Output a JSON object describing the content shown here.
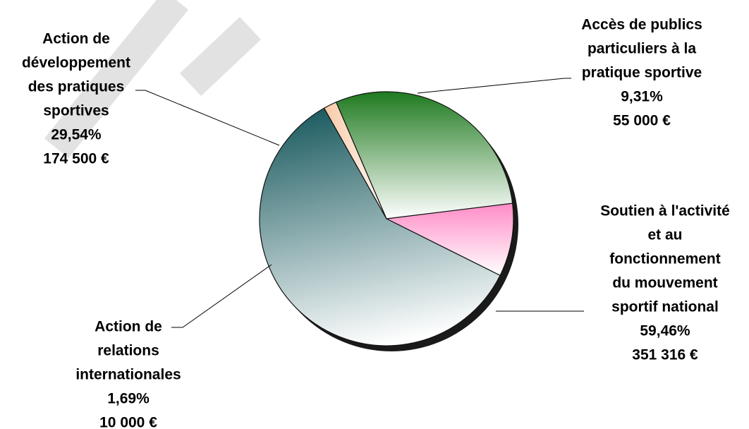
{
  "chart_data": {
    "type": "pie",
    "slices": [
      {
        "lines": [
          "Accès de publics",
          "particuliers à la",
          "pratique sportive"
        ],
        "percent": 9.31,
        "percent_label": "9,31%",
        "amount_label": "55 000 €",
        "value": 55000,
        "color_dark": "#ff8cc6",
        "color_light": "#ffffff"
      },
      {
        "lines": [
          "Soutien à l'activité",
          "et au",
          "fonctionnement",
          "du mouvement",
          "sportif national"
        ],
        "percent": 59.46,
        "percent_label": "59,46%",
        "amount_label": "351 316 €",
        "value": 351316,
        "color_dark": "#1e5d62",
        "color_light": "#ffffff"
      },
      {
        "lines": [
          "Action de",
          "relations",
          "internationales"
        ],
        "percent": 1.69,
        "percent_label": "1,69%",
        "amount_label": "10 000 €",
        "value": 10000,
        "color_dark": "#f7c9a8",
        "color_light": "#fffaf4"
      },
      {
        "lines": [
          "Action de",
          "développement",
          "des pratiques",
          "sportives"
        ],
        "percent": 29.54,
        "percent_label": "29,54%",
        "amount_label": "174 500 €",
        "value": 174500,
        "color_dark": "#1f7a1f",
        "color_light": "#ffffff"
      }
    ],
    "start_angle_deg": -7,
    "direction": "clockwise",
    "legend": "none",
    "title": ""
  }
}
